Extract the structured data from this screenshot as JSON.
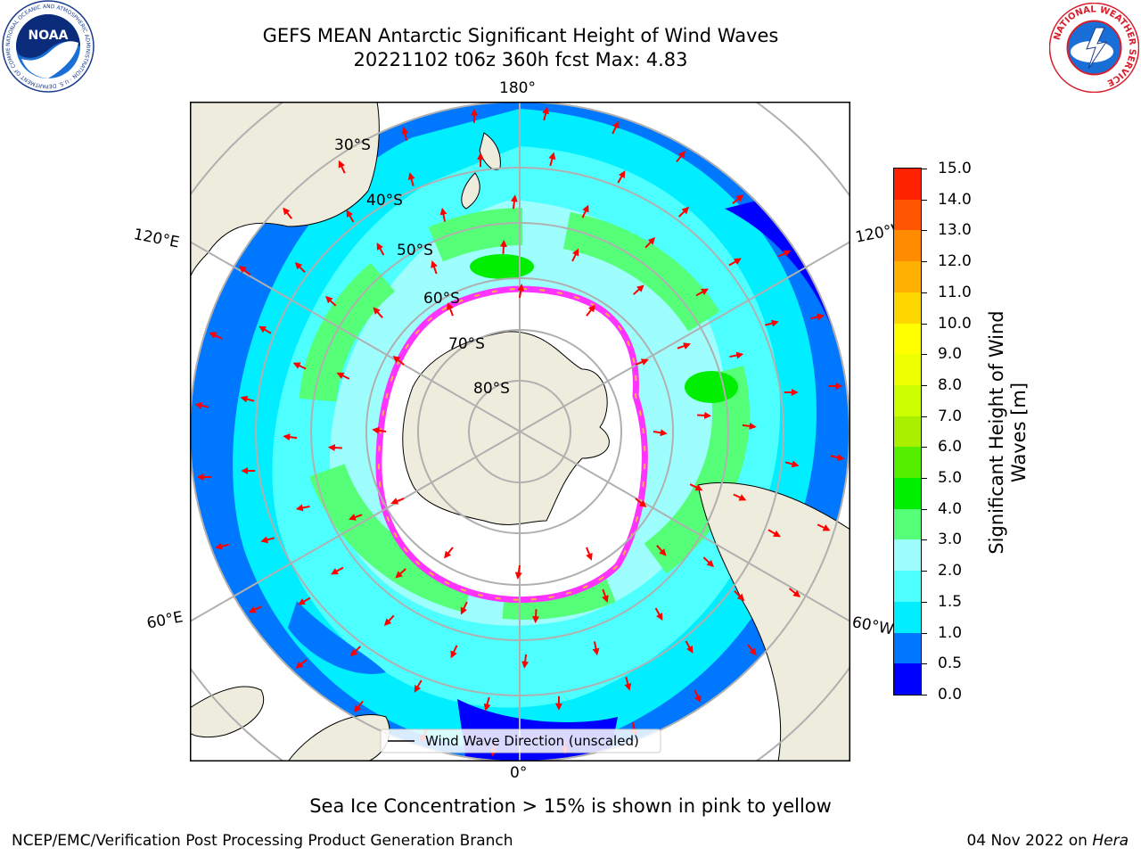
{
  "title": {
    "line1": "GEFS MEAN Antarctic Significant Height of Wind Waves",
    "line2": "20221102 t06z 360h fcst   Max: 4.83"
  },
  "logos": {
    "noaa_text": "NOAA",
    "noaa_ring": "NATIONAL OCEANIC AND ATMOSPHERIC ADMINISTRATION · U.S. DEPARTMENT OF COMMERCE",
    "nws_ring": "NATIONAL WEATHER SERVICE"
  },
  "map": {
    "projection": "south-polar-stereographic",
    "ocean_color": "#00ffff",
    "land_color": "#eeecdc",
    "ice_interior_color": "#ffffff",
    "latitude_labels": [
      "30°S",
      "40°S",
      "50°S",
      "60°S",
      "70°S",
      "80°S"
    ],
    "longitude_labels": {
      "top": "180°",
      "bottom": "0°",
      "left_upper": "120°E",
      "left_lower": "60°E",
      "right_upper": "120°W",
      "right_lower": "60°W"
    },
    "legend_label": "Wind Wave Direction (unscaled)",
    "arrow_color": "#ff0000",
    "sea_ice_colors": [
      "#ff33ff",
      "#ff99ff",
      "#ffb040",
      "#ffff66"
    ]
  },
  "colorbar": {
    "title_line1": "Significant Height of Wind",
    "title_line2": "Waves [m]",
    "ticks": [
      "0.0",
      "0.5",
      "1.0",
      "1.5",
      "2.0",
      "3.0",
      "4.0",
      "5.0",
      "6.0",
      "7.0",
      "8.0",
      "9.0",
      "10.0",
      "11.0",
      "12.0",
      "13.0",
      "14.0",
      "15.0"
    ],
    "colors": [
      "#0000ff",
      "#0077ff",
      "#00eeff",
      "#4dffff",
      "#9efefe",
      "#55ff77",
      "#00ee00",
      "#55ee00",
      "#aaee00",
      "#ccff00",
      "#eeff00",
      "#ffff00",
      "#ffd700",
      "#ffb000",
      "#ff8c00",
      "#ff5500",
      "#ff2200"
    ]
  },
  "footer": {
    "sea_ice_note": "Sea Ice Concentration > 15% is shown in pink to yellow",
    "credit": "NCEP/EMC/Verification Post Processing Product Generation Branch",
    "date": "04 Nov 2022 on",
    "machine": "Hera"
  }
}
